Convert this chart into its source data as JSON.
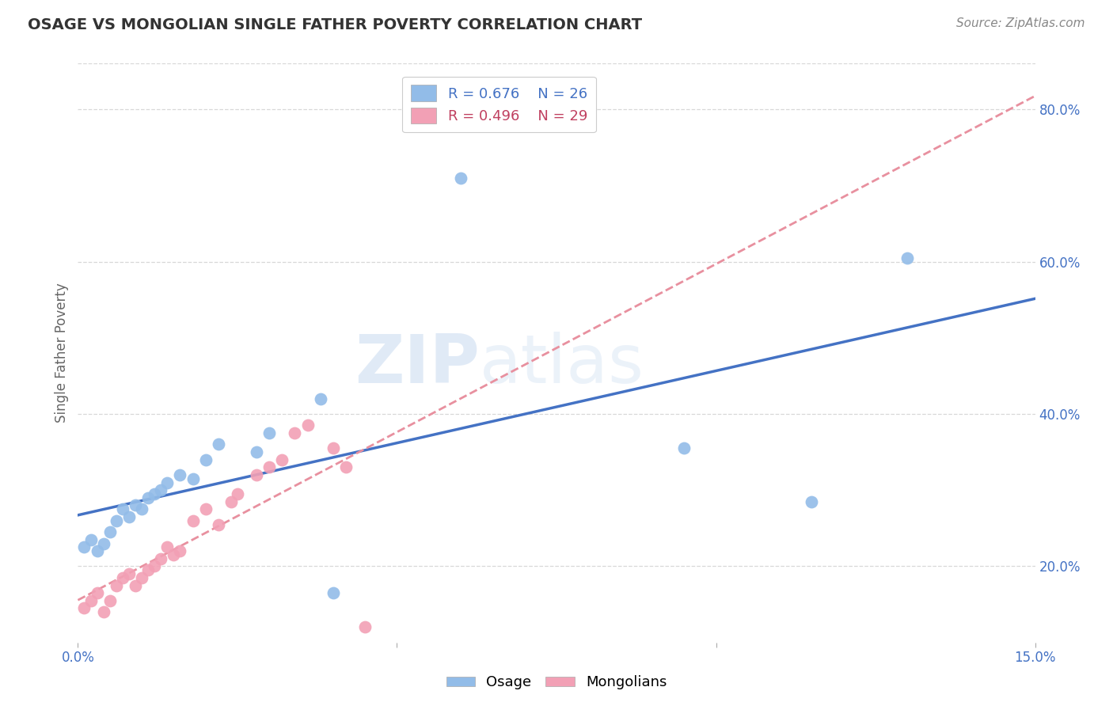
{
  "title": "OSAGE VS MONGOLIAN SINGLE FATHER POVERTY CORRELATION CHART",
  "source": "Source: ZipAtlas.com",
  "ylabel": "Single Father Poverty",
  "xlim": [
    0.0,
    0.15
  ],
  "ylim": [
    0.1,
    0.86
  ],
  "x_tick_positions": [
    0.0,
    0.05,
    0.1,
    0.15
  ],
  "x_tick_labels": [
    "0.0%",
    "",
    "",
    "15.0%"
  ],
  "y_ticks_right": [
    0.2,
    0.4,
    0.6,
    0.8
  ],
  "y_tick_labels_right": [
    "20.0%",
    "40.0%",
    "60.0%",
    "80.0%"
  ],
  "osage_color": "#92bce8",
  "mongolian_color": "#f2a0b5",
  "osage_line_color": "#4472c4",
  "mongolian_line_color": "#e8909f",
  "legend_osage_r": "R = 0.676",
  "legend_osage_n": "N = 26",
  "legend_mongolian_r": "R = 0.496",
  "legend_mongolian_n": "N = 29",
  "watermark_text": "ZIPatlas",
  "osage_x": [
    0.001,
    0.002,
    0.003,
    0.004,
    0.005,
    0.006,
    0.007,
    0.008,
    0.009,
    0.01,
    0.011,
    0.012,
    0.013,
    0.014,
    0.016,
    0.018,
    0.02,
    0.022,
    0.028,
    0.03,
    0.038,
    0.04,
    0.06,
    0.095,
    0.115,
    0.13
  ],
  "osage_y": [
    0.225,
    0.235,
    0.22,
    0.23,
    0.245,
    0.26,
    0.275,
    0.265,
    0.28,
    0.275,
    0.29,
    0.295,
    0.3,
    0.31,
    0.32,
    0.315,
    0.34,
    0.36,
    0.35,
    0.375,
    0.42,
    0.165,
    0.71,
    0.355,
    0.285,
    0.605
  ],
  "mongolian_x": [
    0.001,
    0.002,
    0.003,
    0.004,
    0.005,
    0.006,
    0.007,
    0.008,
    0.009,
    0.01,
    0.011,
    0.012,
    0.013,
    0.014,
    0.015,
    0.016,
    0.018,
    0.02,
    0.022,
    0.024,
    0.025,
    0.028,
    0.03,
    0.032,
    0.034,
    0.036,
    0.04,
    0.042,
    0.045
  ],
  "mongolian_y": [
    0.145,
    0.155,
    0.165,
    0.14,
    0.155,
    0.175,
    0.185,
    0.19,
    0.175,
    0.185,
    0.195,
    0.2,
    0.21,
    0.225,
    0.215,
    0.22,
    0.26,
    0.275,
    0.255,
    0.285,
    0.295,
    0.32,
    0.33,
    0.34,
    0.375,
    0.385,
    0.355,
    0.33,
    0.12
  ],
  "grid_color": "#d8d8d8",
  "grid_linestyle": "--",
  "background_color": "#ffffff",
  "title_fontsize": 14,
  "tick_fontsize": 12,
  "ylabel_fontsize": 12,
  "legend_fontsize": 13,
  "source_fontsize": 11
}
